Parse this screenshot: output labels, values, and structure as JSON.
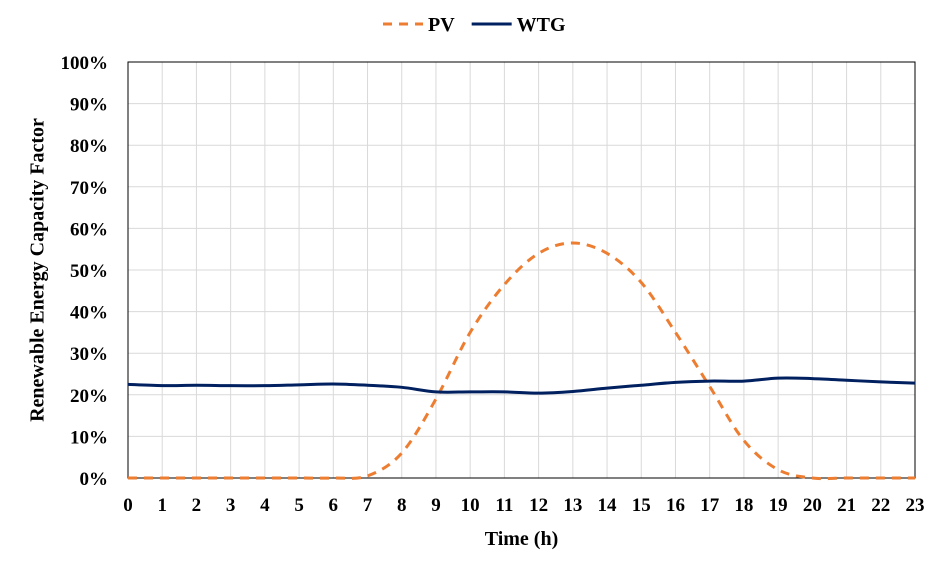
{
  "chart_data": {
    "type": "line",
    "xlabel": "Time (h)",
    "ylabel": "Renewable Energy Capacity Factor",
    "x": [
      0,
      1,
      2,
      3,
      4,
      5,
      6,
      7,
      8,
      9,
      10,
      11,
      12,
      13,
      14,
      15,
      16,
      17,
      18,
      19,
      20,
      21,
      22,
      23
    ],
    "xlim": [
      0,
      23
    ],
    "ylim": [
      0,
      100
    ],
    "y_unit": "%",
    "x_ticks": [
      "0",
      "1",
      "2",
      "3",
      "4",
      "5",
      "6",
      "7",
      "8",
      "9",
      "10",
      "11",
      "12",
      "13",
      "14",
      "15",
      "16",
      "17",
      "18",
      "19",
      "20",
      "21",
      "22",
      "23"
    ],
    "y_ticks": [
      "0%",
      "10%",
      "20%",
      "30%",
      "40%",
      "50%",
      "60%",
      "70%",
      "80%",
      "90%",
      "100%"
    ],
    "grid": true,
    "legend_position": "top-center",
    "series": [
      {
        "name": "PV",
        "style": "dashed",
        "color": "#ED7D31",
        "values": [
          0,
          0,
          0,
          0,
          0,
          0,
          0,
          0.5,
          6,
          19,
          35,
          46.5,
          54,
          56.5,
          54,
          47,
          35,
          22,
          9,
          2,
          0,
          0,
          0,
          0
        ]
      },
      {
        "name": "WTG",
        "style": "solid",
        "color": "#002060",
        "values": [
          22.5,
          22.2,
          22.3,
          22.2,
          22.2,
          22.4,
          22.6,
          22.3,
          21.8,
          20.7,
          20.7,
          20.7,
          20.4,
          20.8,
          21.6,
          22.3,
          23,
          23.3,
          23.3,
          24,
          23.9,
          23.5,
          23.1,
          22.8
        ]
      }
    ]
  }
}
